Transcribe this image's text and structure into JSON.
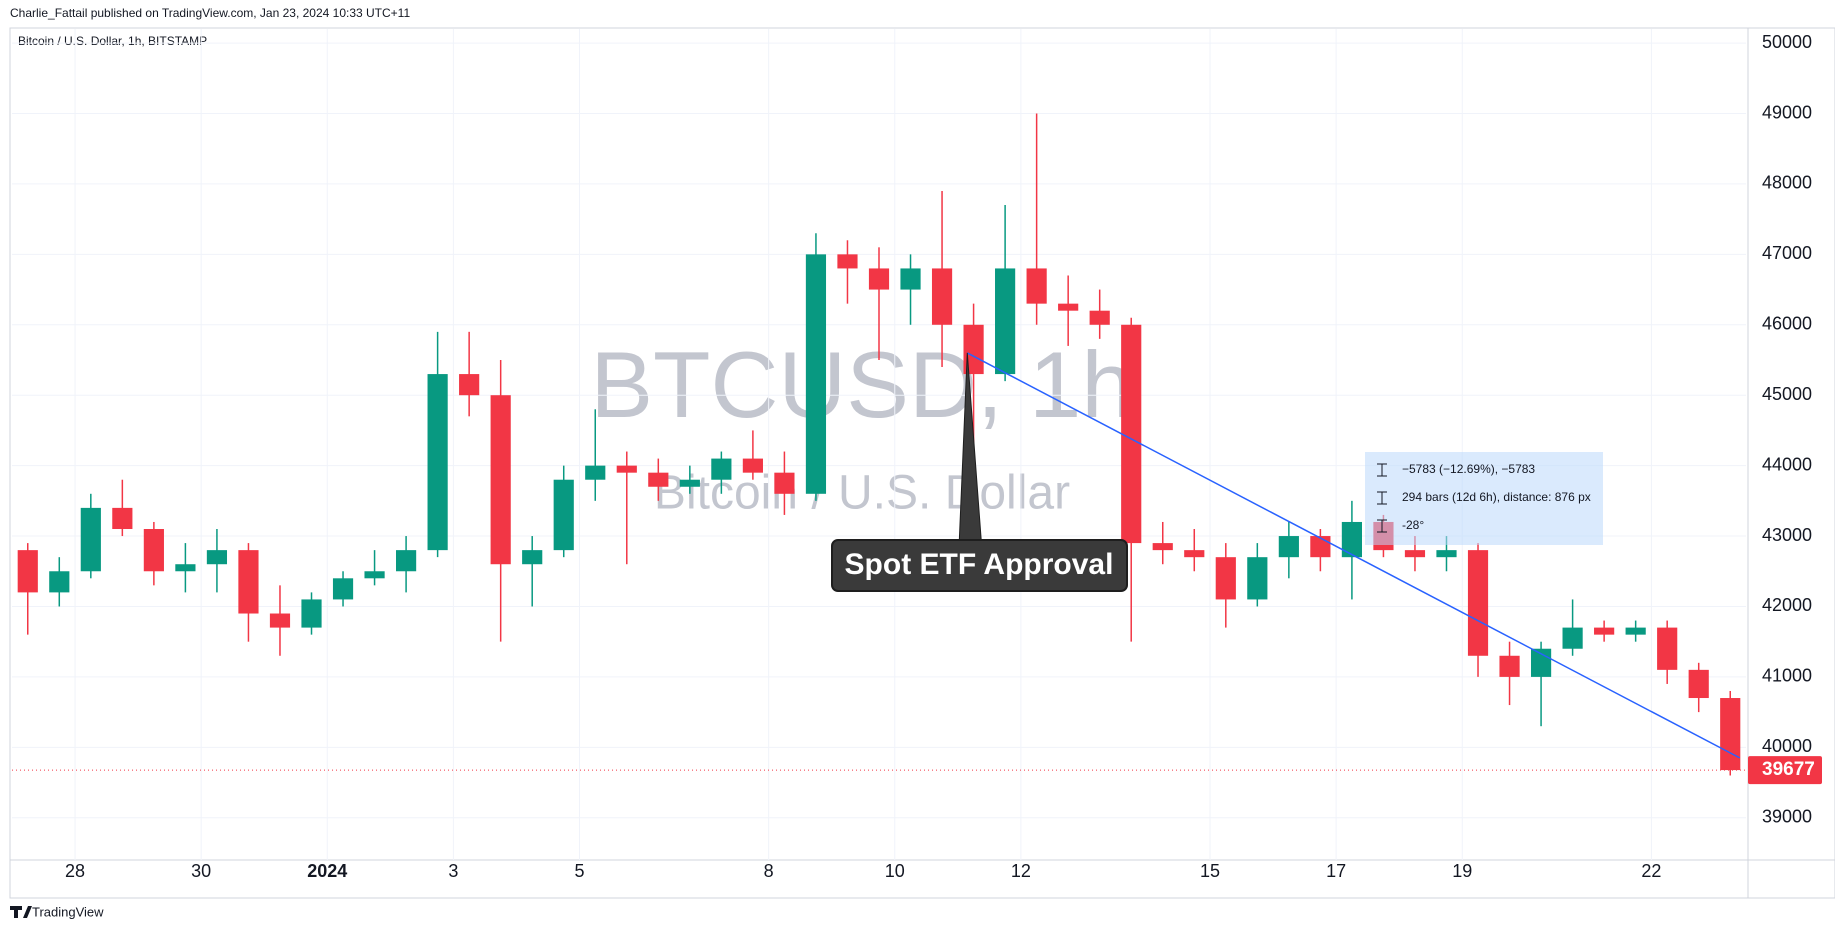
{
  "header": {
    "publisher": "Charlie_Fattail published on TradingView.com, Jan 23, 2024 10:33 UTC+11",
    "symbol": "Bitcoin / U.S. Dollar, 1h, BITSTAMP",
    "watermark": "BTCUSD, 1h",
    "watermark_sub": "Bitcoin / U.S. Dollar",
    "footer": "TradingView"
  },
  "chart_data": {
    "type": "candlestick",
    "up_color": "#089981",
    "down_color": "#f23645",
    "grid": true,
    "candles": {
      "open": [
        42800,
        42200,
        42500,
        43400,
        43100,
        42500,
        42600,
        42800,
        41900,
        41700,
        42100,
        42400,
        42500,
        42800,
        45300,
        45000,
        42600,
        42800,
        43800,
        44000,
        43900,
        43700,
        43800,
        44100,
        43900,
        43600,
        47000,
        46800,
        46500,
        46800,
        46000,
        45300,
        46800,
        46300,
        46200,
        46000,
        42900,
        42800,
        42700,
        42100,
        42700,
        43000,
        42700,
        43200,
        42800,
        42700,
        42800,
        41300,
        41000,
        41400,
        41700,
        41600,
        41700,
        41100,
        40700
      ],
      "high": [
        42900,
        42700,
        43600,
        43800,
        43200,
        42900,
        43100,
        42900,
        42300,
        42200,
        42500,
        42800,
        43000,
        45900,
        45900,
        45500,
        43000,
        44000,
        44800,
        44200,
        44100,
        44000,
        44200,
        44500,
        44200,
        47300,
        47200,
        47100,
        47000,
        47900,
        46300,
        47700,
        49000,
        46700,
        46500,
        46100,
        43200,
        43100,
        42900,
        42900,
        43200,
        43100,
        43500,
        43300,
        43000,
        43000,
        42900,
        41500,
        41500,
        42100,
        41800,
        41800,
        41800,
        41200,
        40800
      ],
      "low": [
        41600,
        42000,
        42400,
        43000,
        42300,
        42200,
        42200,
        41500,
        41300,
        41600,
        42000,
        42300,
        42200,
        42700,
        44700,
        41500,
        42000,
        42700,
        43500,
        42600,
        43500,
        43600,
        43600,
        43800,
        43300,
        43500,
        46300,
        45500,
        46000,
        45400,
        44300,
        45200,
        46000,
        45700,
        45800,
        41500,
        42600,
        42500,
        41700,
        42000,
        42400,
        42500,
        42100,
        42700,
        42500,
        42500,
        41000,
        40600,
        40300,
        41300,
        41500,
        41500,
        40900,
        40500,
        39600
      ],
      "close": [
        42200,
        42500,
        43400,
        43100,
        42500,
        42600,
        42800,
        41900,
        41700,
        42100,
        42400,
        42500,
        42800,
        45300,
        45000,
        42600,
        42800,
        43800,
        44000,
        43900,
        43700,
        43800,
        44100,
        43900,
        43600,
        47000,
        46800,
        46500,
        46800,
        46000,
        45300,
        46800,
        46300,
        46200,
        46000,
        42900,
        42800,
        42700,
        42100,
        42700,
        43000,
        42700,
        43200,
        42800,
        42700,
        42800,
        41300,
        41000,
        41400,
        41700,
        41600,
        41700,
        41100,
        40700,
        39677
      ]
    },
    "xlim": [
      0,
      55
    ],
    "xticks": [
      {
        "value": 2,
        "label": "28"
      },
      {
        "value": 6,
        "label": "30"
      },
      {
        "value": 10,
        "label": "2024"
      },
      {
        "value": 14,
        "label": "3"
      },
      {
        "value": 18,
        "label": "5"
      },
      {
        "value": 24,
        "label": "8"
      },
      {
        "value": 28,
        "label": "10"
      },
      {
        "value": 32,
        "label": "12"
      },
      {
        "value": 38,
        "label": "15"
      },
      {
        "value": 42,
        "label": "17"
      },
      {
        "value": 46,
        "label": "19"
      },
      {
        "value": 52,
        "label": "22"
      }
    ],
    "ylim": [
      38400,
      50200
    ],
    "yticks": [
      39000,
      40000,
      41000,
      42000,
      43000,
      44000,
      45000,
      46000,
      47000,
      48000,
      49000,
      50000
    ],
    "annotation": {
      "text": "Spot ETF Approval",
      "x": 30.3,
      "price": 45600
    },
    "trendline": {
      "x": [
        30.3,
        54.8
      ],
      "price": [
        45600,
        39850
      ],
      "color": "#2962ff"
    },
    "measure": {
      "price_change": "−5783 (−12.69%), −5783",
      "range": "294 bars (12d 6h), distance: 876 px",
      "angle": "-28°"
    }
  }
}
